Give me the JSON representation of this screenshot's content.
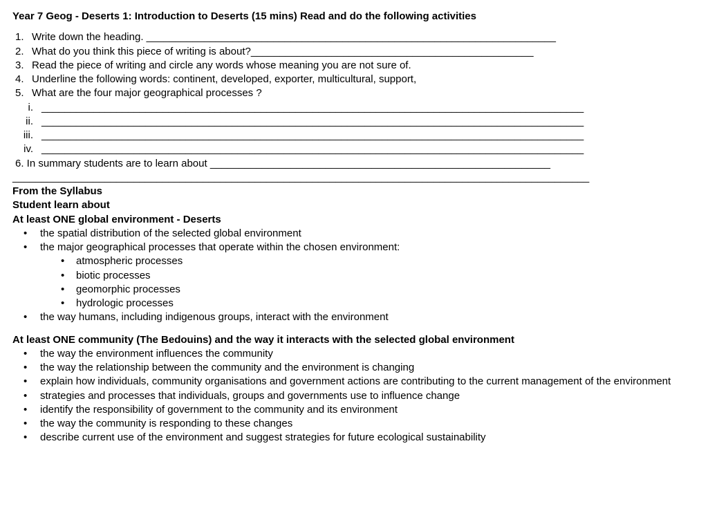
{
  "title": "Year 7 Geog - Deserts 1: Introduction to Deserts (15 mins) Read and do the following activities",
  "q1": {
    "marker": "1.",
    "text": "Write down the heading. ",
    "line": "_______________________________________________________________________"
  },
  "q2": {
    "marker": "2.",
    "text": "What do you think this piece of writing is about?",
    "line": "_________________________________________________"
  },
  "q3": {
    "marker": "3.",
    "text": "Read the piece of writing and circle any words whose meaning you are not sure of."
  },
  "q4": {
    "marker": "4.",
    "text": "Underline the following words: continent, developed, exporter, multicultural, support,"
  },
  "q5": {
    "marker": "5.",
    "text": "What are the four major geographical processes ?"
  },
  "roman": {
    "i": {
      "marker": "i.",
      "line": "______________________________________________________________________________________________"
    },
    "ii": {
      "marker": "ii.",
      "line": "______________________________________________________________________________________________"
    },
    "iii": {
      "marker": "iii.",
      "line": "______________________________________________________________________________________________"
    },
    "iv": {
      "marker": "iv.",
      "line": "______________________________________________________________________________________________"
    }
  },
  "q6": {
    "text": "6. In summary  students are to learn about ",
    "line": "___________________________________________________________"
  },
  "full_line": "____________________________________________________________________________________________________",
  "syllabus": {
    "from": "From the Syllabus",
    "learn": "Student learn about",
    "env_head": "At least ONE global environment - Deserts",
    "env_items": {
      "a": "the spatial distribution of the selected global environment",
      "b": "the major geographical processes that operate within the chosen environment:",
      "b_sub": {
        "s1": "atmospheric processes",
        "s2": "biotic processes",
        "s3": "geomorphic processes",
        "s4": "hydrologic processes"
      },
      "c": "the way humans, including indigenous groups, interact with the environment"
    },
    "comm_head": "At least ONE community (The Bedouins) and the way it interacts with the selected global environment",
    "comm_items": {
      "a": "the way the environment influences the community",
      "b": "the way the relationship between the community and the environment is changing",
      "c": "explain how individuals, community organisations and government actions are contributing to the current management of the environment",
      "d": "strategies and processes that individuals, groups and governments use to influence change",
      "e": " identify the responsibility of government to the community and its environment",
      "f": "the way the community is responding to these changes",
      "g": "describe current use of the environment and suggest strategies for future ecological sustainability"
    }
  }
}
